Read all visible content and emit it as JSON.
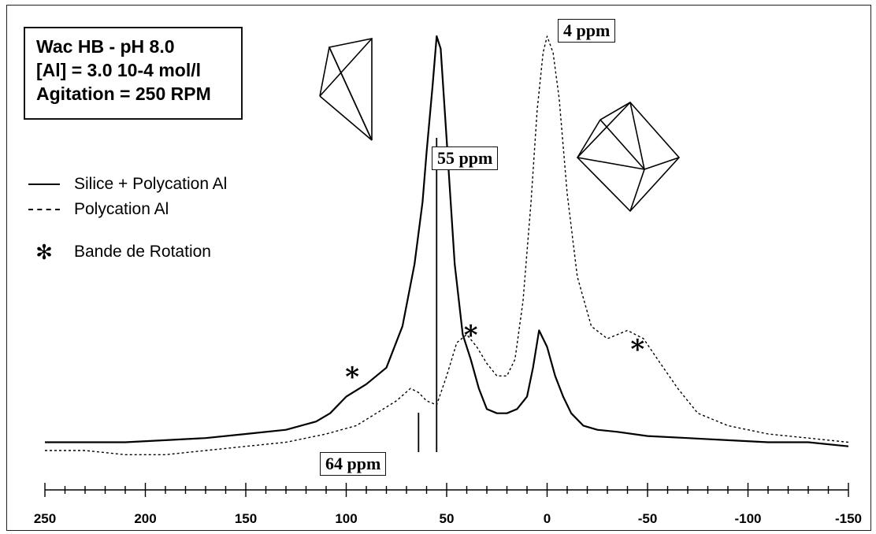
{
  "info_box": {
    "line1": "Wac HB - pH 8.0",
    "line2": "[Al] = 3.0 10-4 mol/l",
    "line3": "Agitation = 250 RPM"
  },
  "legend": {
    "solid_label": "Silice + Polycation Al",
    "dashed_label": "Polycation Al",
    "star_symbol": "✻",
    "star_label": "Bande de Rotation"
  },
  "annotations": {
    "peak_55": "55 ppm",
    "peak_4": "4 ppm",
    "peak_64": "64 ppm"
  },
  "chart_data": {
    "type": "line",
    "title": "",
    "xlabel": "",
    "ylabel": "",
    "xlim": [
      250,
      -150
    ],
    "x_ticks": [
      250,
      200,
      150,
      100,
      50,
      0,
      -50,
      -100,
      -150
    ],
    "x_tick_labels": [
      "250",
      "200",
      "150",
      "100",
      "50",
      "0",
      "-50",
      "-100",
      "-150"
    ],
    "grid": false,
    "legend_position": "left",
    "series": [
      {
        "name": "Silice + Polycation Al",
        "style": "solid",
        "x": [
          250,
          230,
          210,
          190,
          170,
          150,
          130,
          115,
          108,
          100,
          90,
          80,
          72,
          66,
          62,
          60,
          57,
          55,
          53,
          50,
          46,
          42,
          38,
          34,
          30,
          25,
          20,
          15,
          10,
          7,
          4,
          2,
          0,
          -4,
          -8,
          -12,
          -18,
          -25,
          -35,
          -50,
          -70,
          -90,
          -110,
          -130,
          -150
        ],
        "y": [
          0.02,
          0.02,
          0.02,
          0.025,
          0.03,
          0.04,
          0.05,
          0.07,
          0.09,
          0.13,
          0.16,
          0.2,
          0.3,
          0.45,
          0.6,
          0.72,
          0.88,
          1.0,
          0.97,
          0.75,
          0.45,
          0.28,
          0.22,
          0.15,
          0.1,
          0.09,
          0.09,
          0.1,
          0.13,
          0.2,
          0.29,
          0.27,
          0.25,
          0.18,
          0.13,
          0.09,
          0.06,
          0.05,
          0.045,
          0.035,
          0.03,
          0.025,
          0.02,
          0.02,
          0.01
        ]
      },
      {
        "name": "Polycation Al",
        "style": "dashed",
        "x": [
          250,
          230,
          210,
          190,
          170,
          150,
          130,
          110,
          95,
          85,
          75,
          68,
          64,
          60,
          55,
          50,
          45,
          40,
          35,
          30,
          25,
          20,
          16,
          12,
          8,
          5,
          2,
          0,
          -3,
          -6,
          -10,
          -15,
          -22,
          -30,
          -40,
          -48,
          -55,
          -65,
          -75,
          -90,
          -110,
          -130,
          -150
        ],
        "y": [
          0.0,
          0.0,
          -0.01,
          -0.01,
          0.0,
          0.01,
          0.02,
          0.04,
          0.06,
          0.09,
          0.12,
          0.15,
          0.14,
          0.12,
          0.11,
          0.18,
          0.26,
          0.28,
          0.25,
          0.21,
          0.18,
          0.18,
          0.22,
          0.36,
          0.6,
          0.82,
          0.96,
          1.0,
          0.96,
          0.85,
          0.62,
          0.42,
          0.3,
          0.27,
          0.29,
          0.27,
          0.22,
          0.15,
          0.09,
          0.06,
          0.04,
          0.03,
          0.02
        ]
      }
    ],
    "rotation_band_markers_x": [
      97,
      38,
      -45
    ]
  }
}
